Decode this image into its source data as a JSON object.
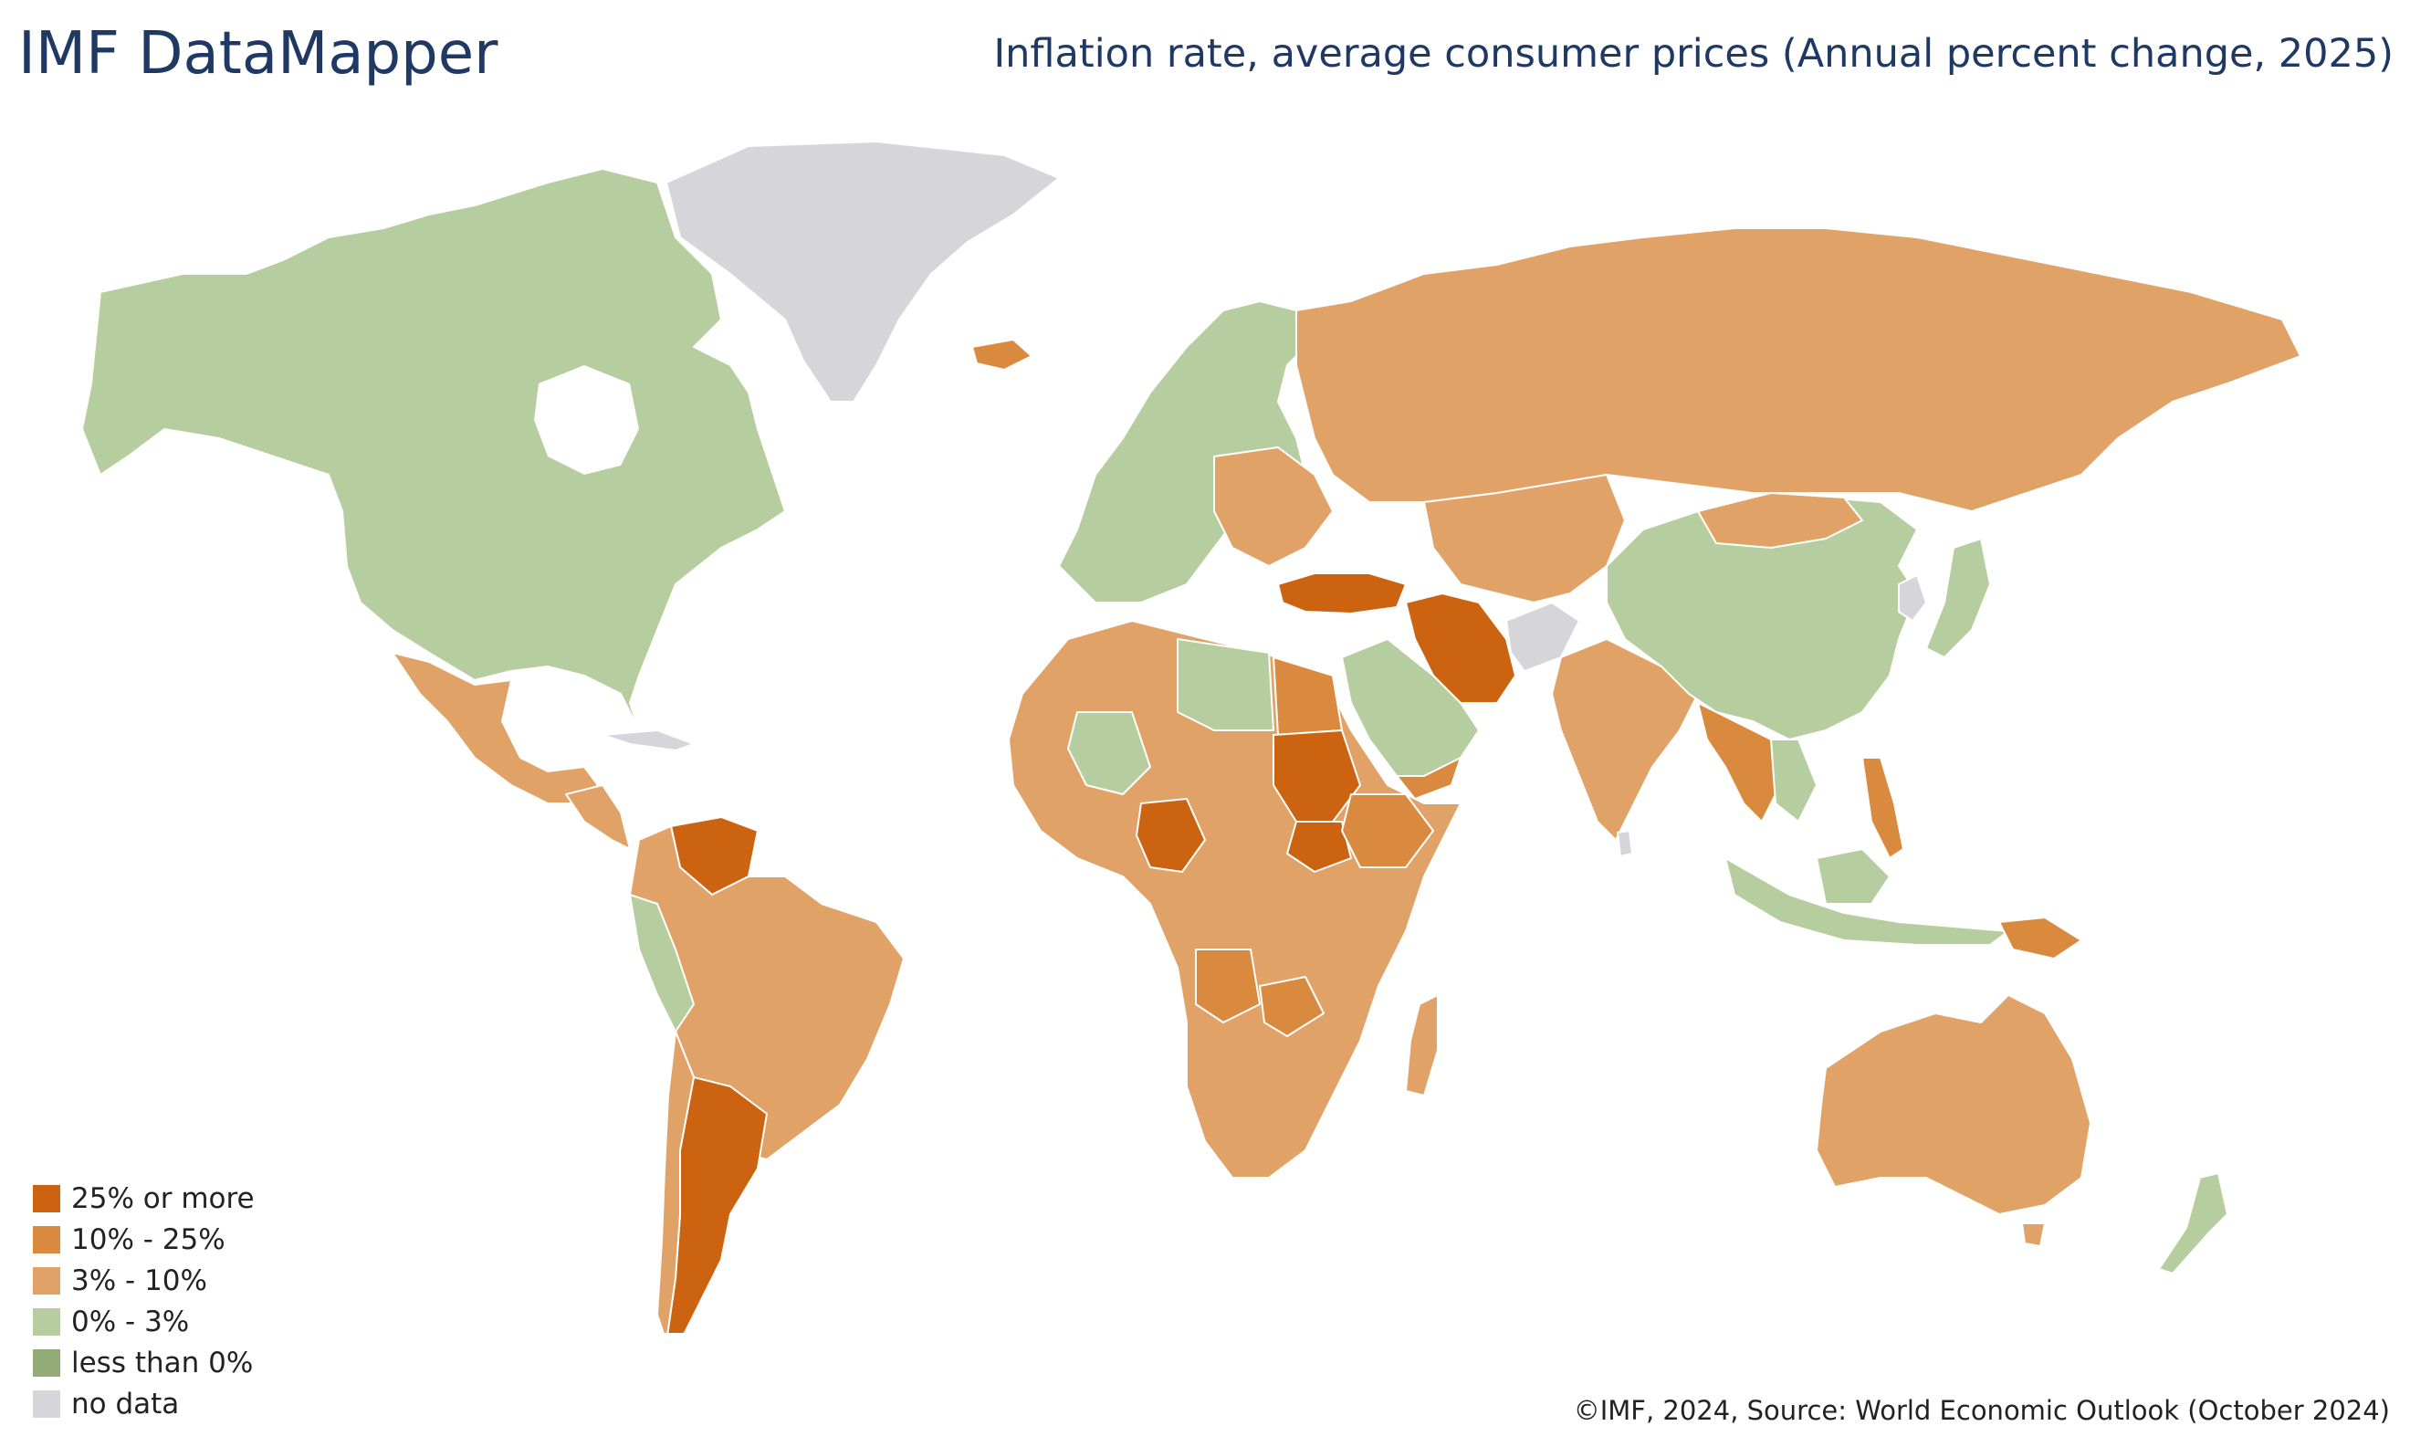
{
  "header": {
    "brand": "IMF DataMapper",
    "title": "Inflation rate, average consumer prices (Annual percent change, 2025)"
  },
  "colors": {
    "c25": "#cc6310",
    "c10": "#d98a3f",
    "c3": "#e0a267",
    "c0": "#b6ce9f",
    "neg": "#93ab76",
    "nodata": "#d6d6da"
  },
  "legend": {
    "items": [
      {
        "label": "25% or more",
        "color": "#cc6310"
      },
      {
        "label": "10% - 25%",
        "color": "#d98a3f"
      },
      {
        "label": "3% - 10%",
        "color": "#e0a267"
      },
      {
        "label": "0% - 3%",
        "color": "#b6ce9f"
      },
      {
        "label": "less than 0%",
        "color": "#93ab76"
      },
      {
        "label": "no data",
        "color": "#d6d6da"
      }
    ]
  },
  "credit": "©IMF, 2024, Source: World Economic Outlook (October 2024)"
}
